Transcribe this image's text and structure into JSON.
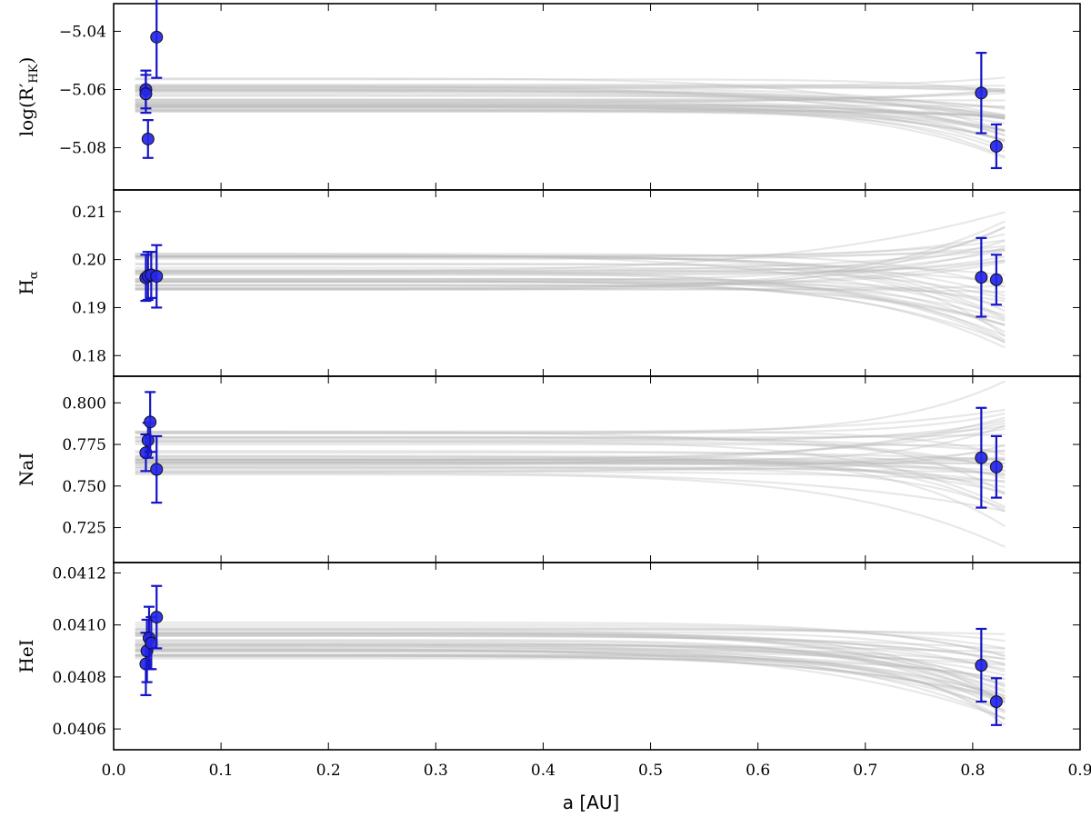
{
  "chart_data": {
    "type": "scatter",
    "x_shared": true,
    "xlabel": "a [AU]",
    "xlim": [
      0.0,
      0.9
    ],
    "xticks": [
      0.0,
      0.1,
      0.2,
      0.3,
      0.4,
      0.5,
      0.6,
      0.7,
      0.8,
      0.9
    ],
    "xtick_labels": [
      "0.0",
      "0.1",
      "0.2",
      "0.3",
      "0.4",
      "0.5",
      "0.6",
      "0.7",
      "0.8",
      "0.9"
    ],
    "point_color": "#2626e8",
    "errorbar_color": "#1515c8",
    "model_curve_color": "#b9b9b9",
    "model_curve_x_range": [
      0.02,
      0.83
    ],
    "panels": [
      {
        "ylabel_main": "log(R′",
        "ylabel_sub": "HK",
        "ylabel_close": ")",
        "ylim": [
          -5.0945,
          -5.0305
        ],
        "yticks": [
          -5.04,
          -5.06,
          -5.08
        ],
        "ytick_labels": [
          "−5.04",
          "−5.06",
          "−5.08"
        ],
        "points": [
          {
            "x": 0.03,
            "y": -5.06,
            "err": 0.0065
          },
          {
            "x": 0.03,
            "y": -5.0615,
            "err": 0.0065
          },
          {
            "x": 0.032,
            "y": -5.077,
            "err": 0.0065
          },
          {
            "x": 0.04,
            "y": -5.042,
            "err": 0.014
          },
          {
            "x": 0.808,
            "y": -5.0612,
            "err": 0.0138
          },
          {
            "x": 0.822,
            "y": -5.0795,
            "err": 0.0075
          }
        ],
        "model_curves": {
          "count": 40,
          "base_min": -5.068,
          "base_max": -5.056,
          "slope_min": -0.0185,
          "slope_max": 0.0045,
          "seed": 11
        }
      },
      {
        "ylabel_main": "H",
        "ylabel_sub": "α",
        "ylabel_close": "",
        "ylim": [
          0.1757,
          0.2145
        ],
        "yticks": [
          0.18,
          0.19,
          0.2,
          0.21
        ],
        "ytick_labels": [
          "0.18",
          "0.19",
          "0.20",
          "0.21"
        ],
        "points": [
          {
            "x": 0.03,
            "y": 0.1962,
            "err": 0.0048
          },
          {
            "x": 0.032,
            "y": 0.1966,
            "err": 0.005
          },
          {
            "x": 0.035,
            "y": 0.1968,
            "err": 0.0048
          },
          {
            "x": 0.04,
            "y": 0.1965,
            "err": 0.0065
          },
          {
            "x": 0.808,
            "y": 0.1963,
            "err": 0.0082
          },
          {
            "x": 0.822,
            "y": 0.1958,
            "err": 0.0052
          }
        ],
        "model_curves": {
          "count": 40,
          "base_min": 0.1935,
          "base_max": 0.2012,
          "slope_min": -0.015,
          "slope_max": 0.015,
          "seed": 23
        }
      },
      {
        "ylabel_main": "NaI",
        "ylabel_sub": "",
        "ylabel_close": "",
        "ylim": [
          0.704,
          0.816
        ],
        "yticks": [
          0.725,
          0.75,
          0.775,
          0.8
        ],
        "ytick_labels": [
          "0.725",
          "0.750",
          "0.775",
          "0.800"
        ],
        "points": [
          {
            "x": 0.03,
            "y": 0.77,
            "err": 0.011
          },
          {
            "x": 0.032,
            "y": 0.7775,
            "err": 0.0105
          },
          {
            "x": 0.034,
            "y": 0.7885,
            "err": 0.018
          },
          {
            "x": 0.04,
            "y": 0.76,
            "err": 0.02
          },
          {
            "x": 0.808,
            "y": 0.767,
            "err": 0.03
          },
          {
            "x": 0.822,
            "y": 0.7615,
            "err": 0.0185
          }
        ],
        "model_curves": {
          "count": 40,
          "base_min": 0.756,
          "base_max": 0.783,
          "slope_min": -0.047,
          "slope_max": 0.032,
          "seed": 37
        }
      },
      {
        "ylabel_main": "HeI",
        "ylabel_sub": "",
        "ylabel_close": "",
        "ylim": [
          0.04052,
          0.04124
        ],
        "yticks": [
          0.0406,
          0.0408,
          0.041,
          0.0412
        ],
        "ytick_labels": [
          "0.0406",
          "0.0408",
          "0.0410",
          "0.0412"
        ],
        "points": [
          {
            "x": 0.03,
            "y": 0.04085,
            "err": 0.00012
          },
          {
            "x": 0.031,
            "y": 0.0409,
            "err": 0.00012
          },
          {
            "x": 0.033,
            "y": 0.04095,
            "err": 0.00012
          },
          {
            "x": 0.035,
            "y": 0.04093,
            "err": 0.0001
          },
          {
            "x": 0.04,
            "y": 0.04103,
            "err": 0.00012
          },
          {
            "x": 0.808,
            "y": 0.040845,
            "err": 0.00014
          },
          {
            "x": 0.822,
            "y": 0.040705,
            "err": 9e-05
          }
        ],
        "model_curves": {
          "count": 40,
          "base_min": 0.04087,
          "base_max": 0.04101,
          "slope_min": -0.00029,
          "slope_max": -5e-06,
          "seed": 53
        }
      }
    ]
  }
}
